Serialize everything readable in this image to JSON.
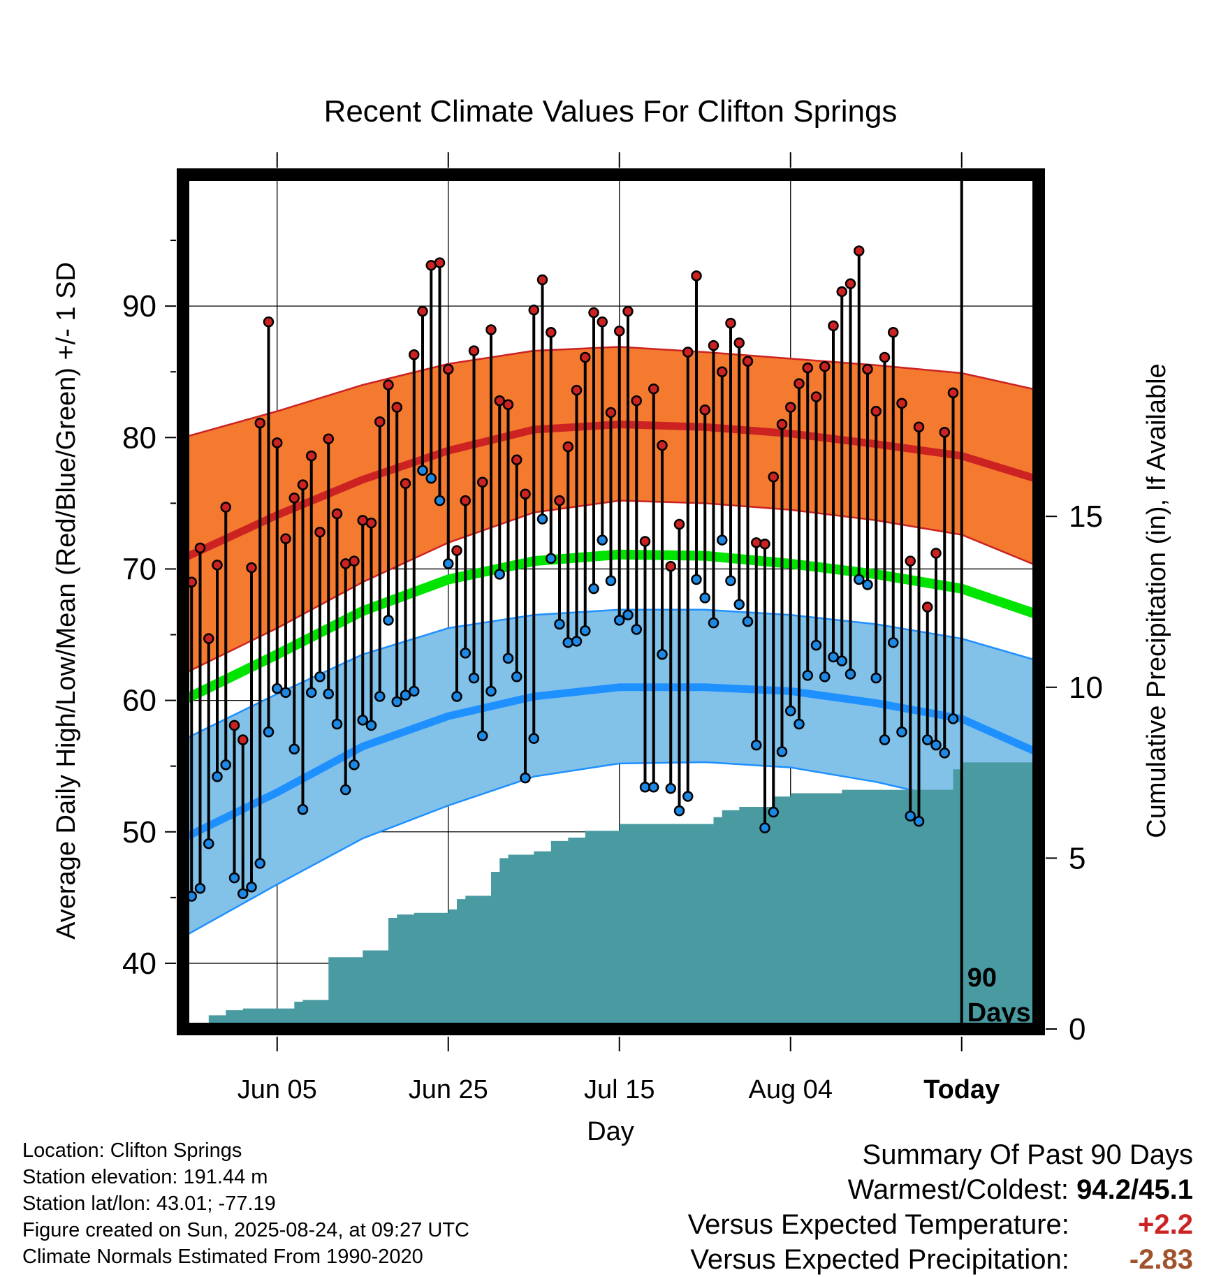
{
  "chart_data": {
    "type": "line",
    "title": "Recent Climate Values For Clifton Springs",
    "xlabel": "Day",
    "ylabel": "Average Daily High/Low/Mean (Red/Blue/Green) +/- 1 SD",
    "y2label": "Cumulative Precipitation (in), If Available",
    "x_range_days": [
      -91,
      9
    ],
    "ylim": [
      35,
      100
    ],
    "y2lim": [
      0,
      25
    ],
    "yticks": [
      40,
      50,
      60,
      70,
      80,
      90
    ],
    "y2ticks": [
      0,
      5,
      10,
      15
    ],
    "xticks": [
      {
        "day": -80,
        "label": "Jun 05"
      },
      {
        "day": -60,
        "label": "Jun 25"
      },
      {
        "day": -40,
        "label": "Jul 15"
      },
      {
        "day": -20,
        "label": "Aug 04"
      },
      {
        "day": 0,
        "label": "Today"
      }
    ],
    "today_marker_label": [
      "90",
      "Days"
    ],
    "grid": true,
    "colors": {
      "high_band": "#f47a30",
      "high_mean": "#cc2222",
      "low_band": "#82c1e8",
      "low_mean": "#1e90ff",
      "mean": "#00e400",
      "precip": "#4a9aa2",
      "high_dot": "#cc2222",
      "low_dot": "#1e88e5"
    },
    "normals": {
      "days": [
        -91,
        -80,
        -70,
        -60,
        -50,
        -40,
        -30,
        -20,
        -10,
        0,
        9
      ],
      "high_mean": [
        70.8,
        74.1,
        76.8,
        79.0,
        80.6,
        81.0,
        80.8,
        80.3,
        79.5,
        78.6,
        76.8
      ],
      "high_plus_sd": [
        80.0,
        82.0,
        84.0,
        85.6,
        86.6,
        86.9,
        86.5,
        86.0,
        85.5,
        84.9,
        83.6
      ],
      "high_minus_sd": [
        62.0,
        65.5,
        69.0,
        72.0,
        74.3,
        75.2,
        75.0,
        74.5,
        73.7,
        72.6,
        70.2
      ],
      "low_mean": [
        49.5,
        53.0,
        56.5,
        58.8,
        60.3,
        61.0,
        61.0,
        60.7,
        59.8,
        58.6,
        56.0
      ],
      "low_plus_sd": [
        57.0,
        60.5,
        63.5,
        65.5,
        66.5,
        66.9,
        66.9,
        66.5,
        65.8,
        64.7,
        63.0
      ],
      "low_minus_sd": [
        42.0,
        46.0,
        49.5,
        52.0,
        54.2,
        55.2,
        55.3,
        54.9,
        53.8,
        52.3,
        49.5
      ],
      "mean": [
        60.0,
        63.5,
        66.8,
        69.2,
        70.6,
        71.1,
        71.0,
        70.4,
        69.6,
        68.5,
        66.5
      ]
    },
    "daily": {
      "start_day": -90,
      "highs": [
        69.0,
        71.6,
        64.7,
        70.3,
        74.7,
        58.1,
        57.0,
        70.1,
        81.1,
        88.8,
        79.6,
        72.3,
        75.4,
        76.4,
        78.6,
        72.8,
        79.9,
        74.2,
        70.4,
        70.6,
        73.7,
        73.5,
        81.2,
        84.0,
        82.3,
        76.5,
        86.3,
        89.6,
        93.1,
        93.3,
        85.2,
        71.4,
        75.2,
        86.6,
        76.6,
        88.2,
        82.8,
        82.5,
        78.3,
        75.7,
        89.7,
        92.0,
        88.0,
        75.2,
        79.3,
        83.6,
        86.1,
        89.5,
        88.8,
        81.9,
        88.1,
        89.6,
        82.8,
        72.1,
        83.7,
        79.4,
        70.2,
        73.4,
        86.5,
        92.3,
        82.1,
        87.0,
        85.0,
        88.7,
        87.2,
        85.8,
        72.0,
        71.9,
        77.0,
        81.0,
        82.3,
        84.1,
        85.3,
        83.1,
        85.4,
        88.5,
        91.1,
        91.7,
        94.2,
        85.2,
        82.0,
        86.1,
        88.0,
        82.6,
        70.6,
        80.8,
        67.1,
        71.2,
        80.4,
        83.4
      ],
      "lows": [
        45.1,
        45.7,
        49.1,
        54.2,
        55.1,
        46.5,
        45.3,
        45.8,
        47.6,
        57.6,
        60.9,
        60.6,
        56.3,
        51.7,
        60.6,
        61.8,
        60.5,
        58.2,
        53.2,
        55.1,
        58.5,
        58.1,
        60.3,
        66.1,
        59.9,
        60.4,
        60.7,
        77.5,
        76.9,
        75.2,
        70.4,
        60.3,
        63.6,
        61.7,
        57.3,
        60.7,
        69.6,
        63.2,
        61.8,
        54.1,
        57.1,
        73.8,
        70.8,
        65.8,
        64.4,
        64.5,
        65.3,
        68.5,
        72.2,
        69.1,
        66.1,
        66.5,
        65.4,
        53.4,
        53.4,
        63.5,
        53.3,
        51.6,
        52.7,
        69.2,
        67.8,
        65.9,
        72.2,
        69.1,
        67.3,
        66.0,
        56.6,
        50.3,
        51.5,
        56.1,
        59.2,
        58.2,
        61.9,
        64.2,
        61.8,
        63.3,
        63.0,
        62.0,
        69.2,
        68.8,
        61.7,
        57.0,
        64.4,
        57.6,
        51.2,
        50.8,
        57.0,
        56.6,
        56.0,
        58.6
      ]
    },
    "precip_cumulative": {
      "days": [
        -90,
        -89,
        -88,
        -86,
        -84,
        -82,
        -80,
        -78,
        -77,
        -76,
        -74,
        -72,
        -70,
        -68,
        -67,
        -66,
        -64,
        -62,
        -60,
        -59,
        -58,
        -57,
        -55,
        -54,
        -53,
        -52,
        -50,
        -48,
        -46,
        -44,
        -42,
        -40,
        -38,
        -36,
        -34,
        -32,
        -30,
        -29,
        -28,
        -26,
        -24,
        -22,
        -20,
        -18,
        -16,
        -14,
        -12,
        -10,
        -8,
        -6,
        -4,
        -3,
        -2,
        -1,
        0,
        1,
        9
      ],
      "values": [
        0.0,
        0.0,
        0.4,
        0.55,
        0.6,
        0.6,
        0.6,
        0.8,
        0.85,
        0.85,
        2.1,
        2.1,
        2.3,
        2.3,
        3.25,
        3.35,
        3.4,
        3.4,
        3.5,
        3.8,
        3.9,
        3.9,
        4.6,
        5.0,
        5.1,
        5.1,
        5.2,
        5.5,
        5.6,
        5.8,
        5.8,
        6.0,
        6.0,
        6.0,
        6.0,
        6.0,
        6.0,
        6.2,
        6.4,
        6.5,
        6.5,
        6.8,
        6.9,
        6.9,
        6.9,
        7.0,
        7.0,
        7.0,
        7.0,
        7.0,
        7.0,
        7.0,
        7.0,
        7.6,
        7.8,
        7.8,
        7.8
      ]
    }
  },
  "footer": {
    "location": "Location: Clifton Springs",
    "elevation": "Station elevation: 191.44 m",
    "latlon": "Station lat/lon: 43.01; -77.19",
    "created": "Figure created on Sun, 2025-08-24, at 09:27 UTC",
    "normals": "Climate Normals Estimated From 1990-2020"
  },
  "summary": {
    "heading": "Summary Of Past 90 Days",
    "warmest_coldest_label": "Warmest/Coldest:",
    "warmest_coldest_value": "94.2/45.1",
    "temp_label": "Versus Expected Temperature:",
    "temp_value": "+2.2",
    "temp_color": "#cc2222",
    "precip_label": "Versus Expected Precipitation:",
    "precip_value": "-2.83",
    "precip_color": "#a0522d"
  }
}
